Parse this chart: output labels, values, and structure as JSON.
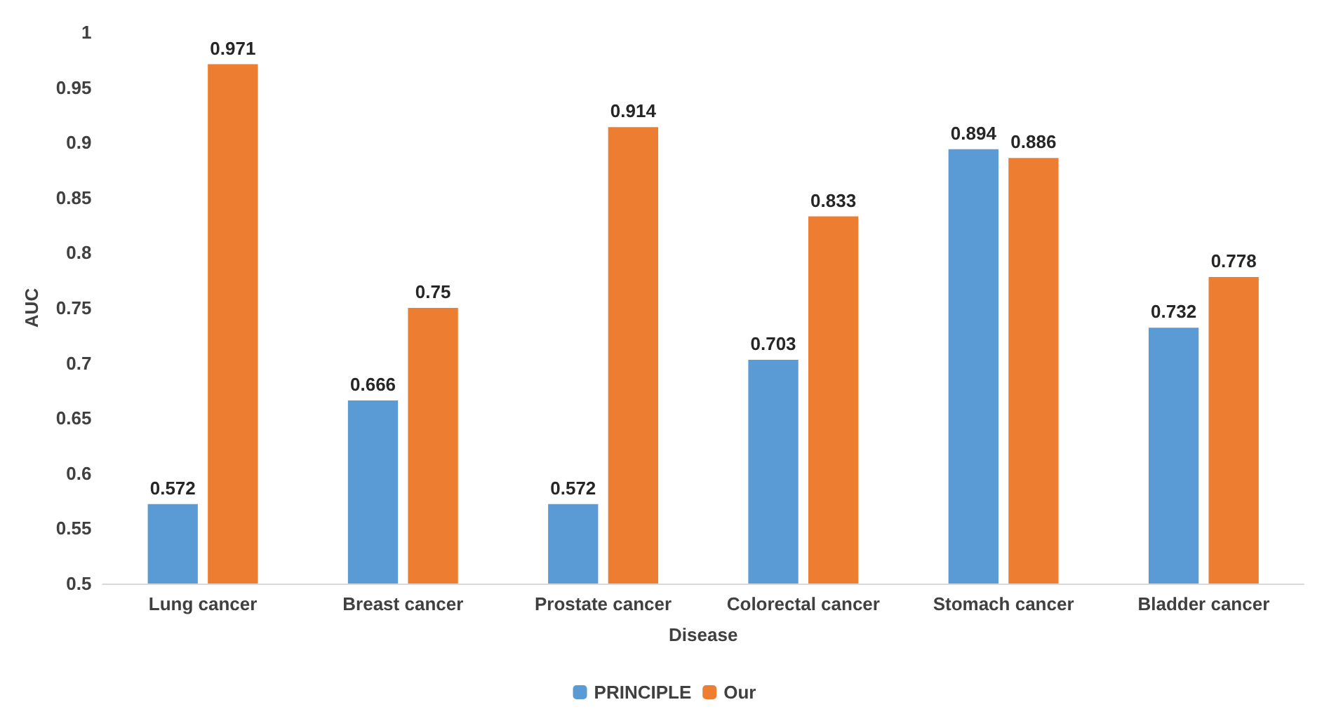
{
  "chart_data": {
    "type": "bar",
    "xlabel": "Disease",
    "ylabel": "AUC",
    "categories": [
      "Lung cancer",
      "Breast cancer",
      "Prostate cancer",
      "Colorectal cancer",
      "Stomach cancer",
      "Bladder cancer"
    ],
    "series": [
      {
        "name": "PRINCIPLE",
        "color": "#5b9bd5",
        "values": [
          0.572,
          0.666,
          0.572,
          0.703,
          0.894,
          0.732
        ]
      },
      {
        "name": "Our",
        "color": "#ed7d31",
        "values": [
          0.971,
          0.75,
          0.914,
          0.833,
          0.886,
          0.778
        ]
      }
    ],
    "ylim": [
      0.5,
      1
    ],
    "yticks": [
      0.5,
      0.55,
      0.6,
      0.65,
      0.7,
      0.75,
      0.8,
      0.85,
      0.9,
      0.95,
      1
    ],
    "grid": false,
    "legend": "bottom",
    "data_labels": true
  }
}
